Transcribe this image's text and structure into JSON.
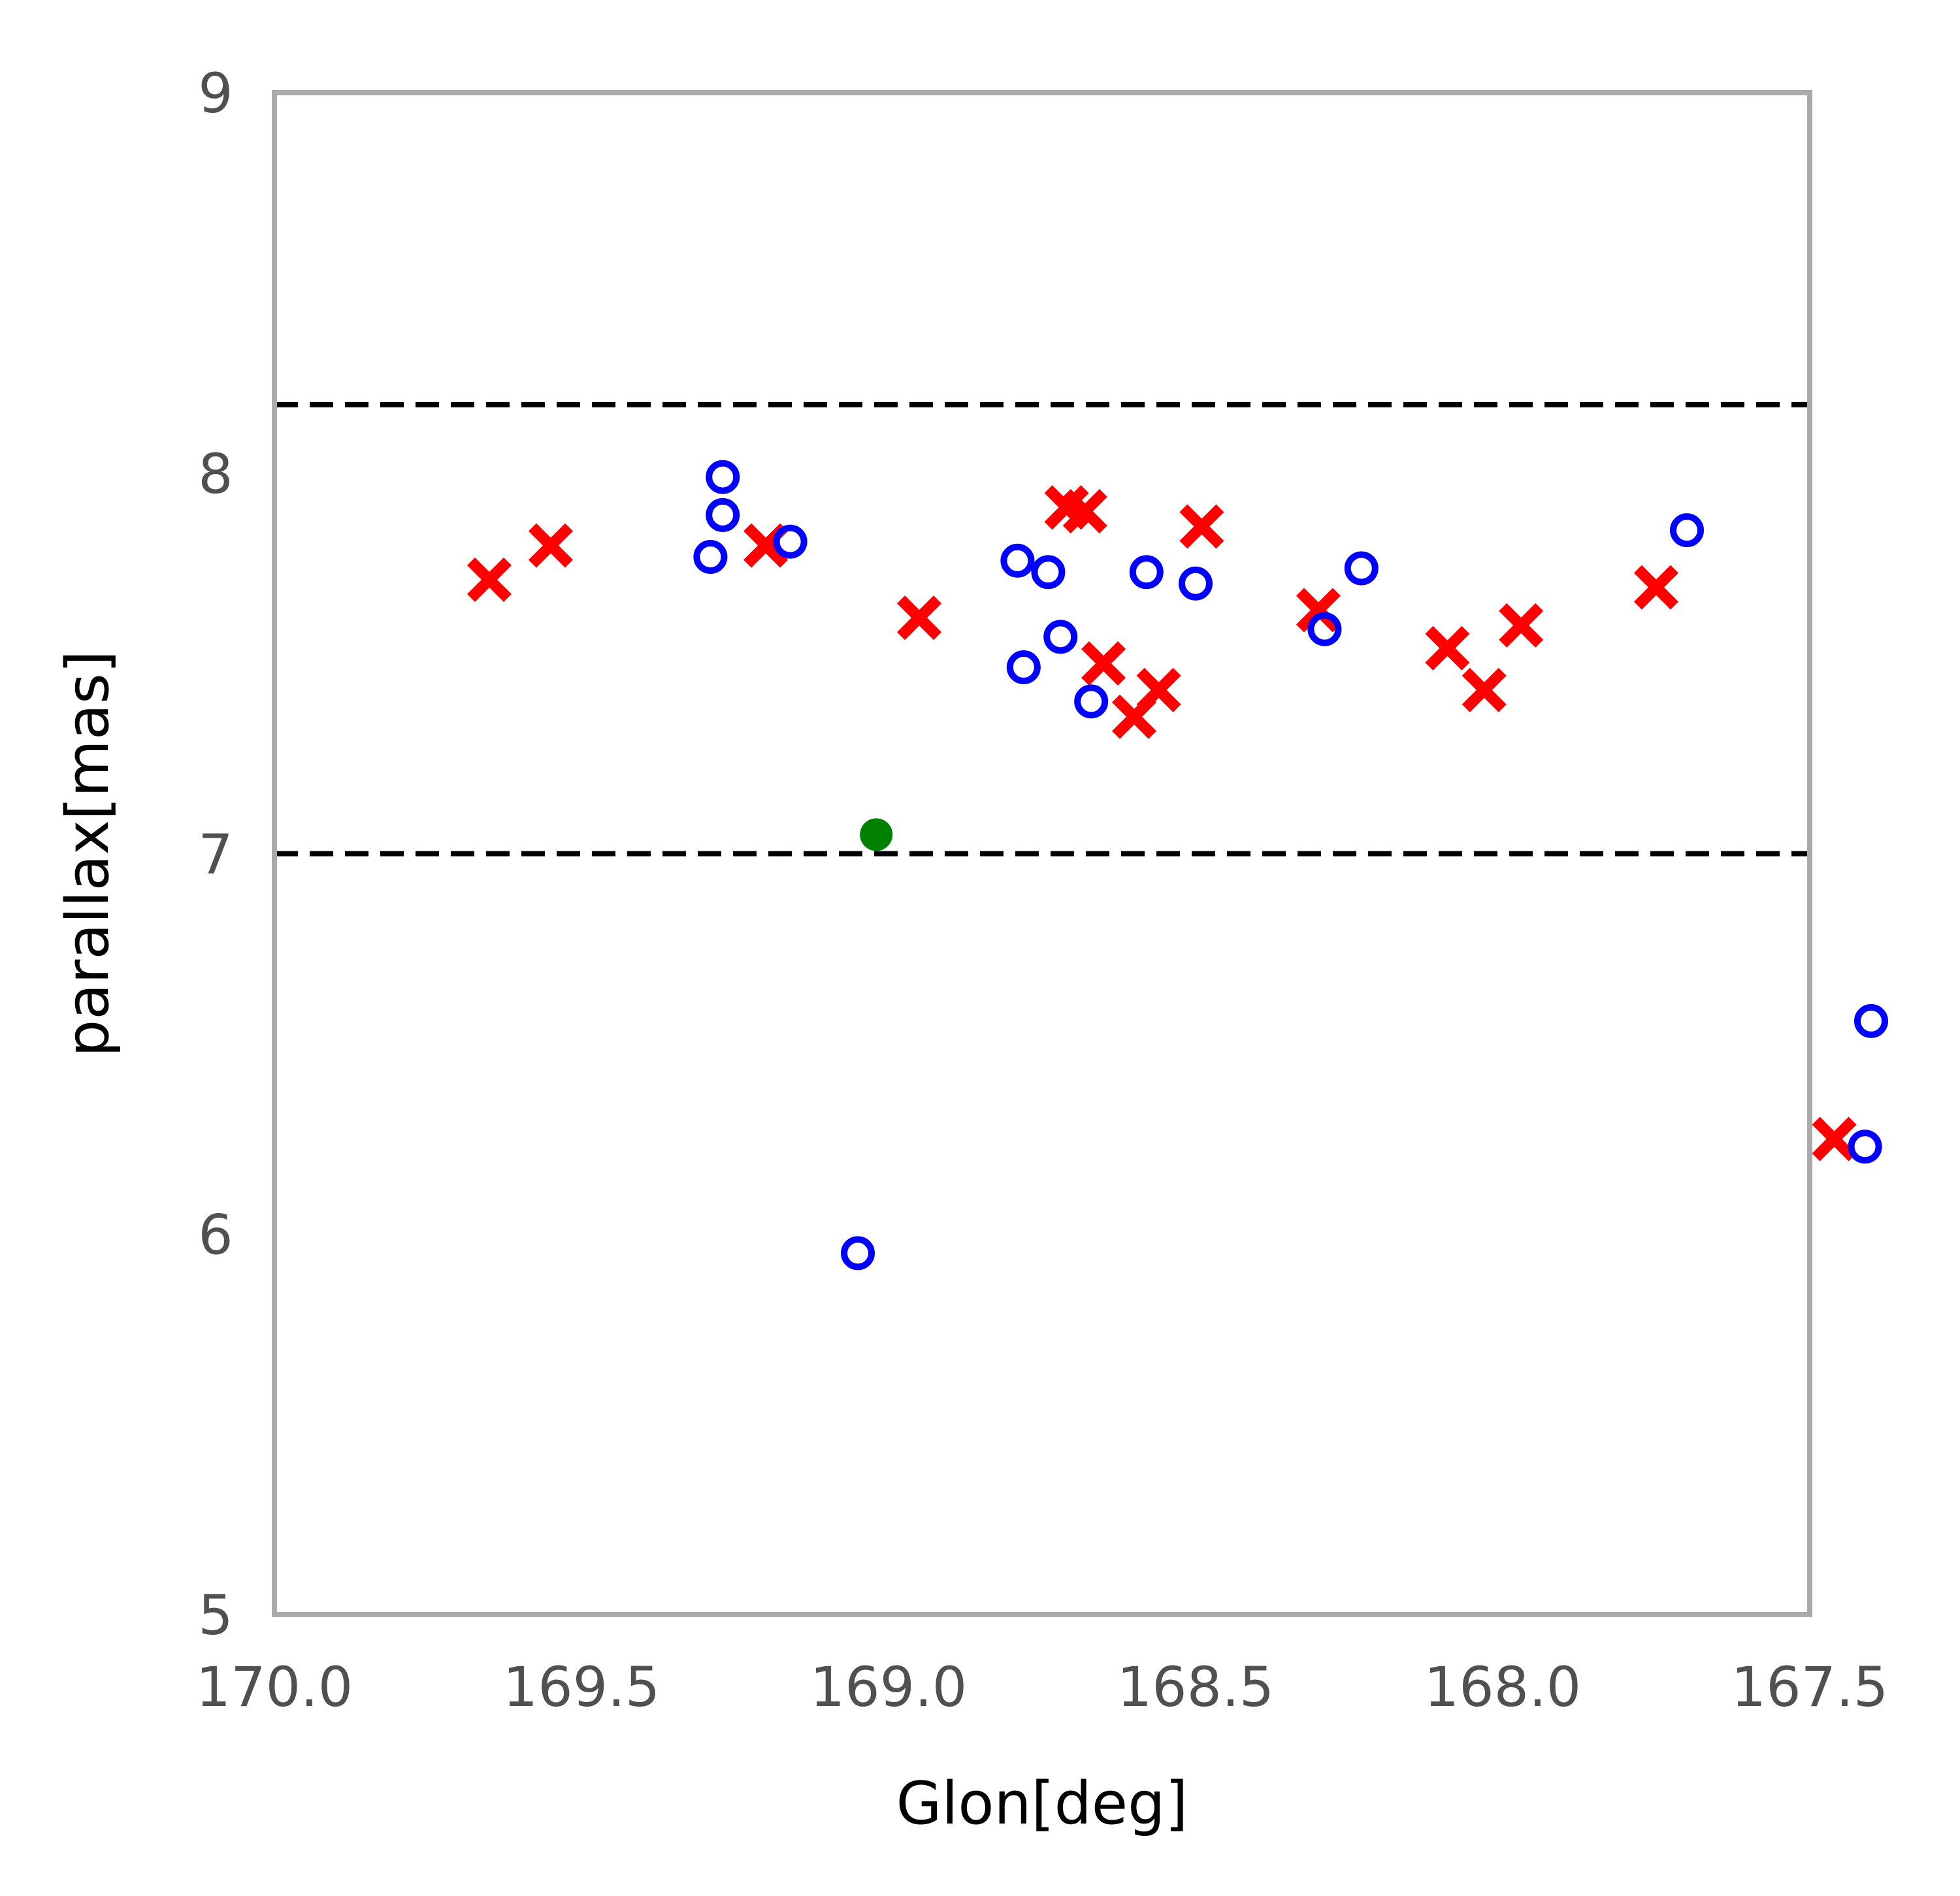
{
  "chart_data": {
    "type": "scatter",
    "title": "",
    "xlabel": "Glon[deg]",
    "ylabel": "parallax[mas]",
    "xlim": [
      170.0,
      167.5
    ],
    "ylim": [
      5,
      9
    ],
    "x_reversed": true,
    "grid": false,
    "x_ticks": [
      170.0,
      169.5,
      169.0,
      168.5,
      168.0,
      167.5
    ],
    "x_tick_labels": [
      "170.0",
      "169.5",
      "169.0",
      "168.5",
      "168.0",
      "167.5"
    ],
    "y_ticks": [
      5,
      6,
      7,
      8,
      9
    ],
    "y_tick_labels": [
      "5",
      "6",
      "7",
      "8",
      "9"
    ],
    "reference_lines": [
      {
        "y": 8.18,
        "style": "dashed",
        "color": "#000000"
      },
      {
        "y": 7.0,
        "style": "dashed",
        "color": "#000000"
      }
    ],
    "series": [
      {
        "marker": "x-filled",
        "color": "#ff0000",
        "points": [
          {
            "x": 169.65,
            "y": 7.72
          },
          {
            "x": 169.55,
            "y": 7.81
          },
          {
            "x": 169.2,
            "y": 7.81
          },
          {
            "x": 168.95,
            "y": 7.62
          },
          {
            "x": 168.71,
            "y": 7.91
          },
          {
            "x": 168.68,
            "y": 7.9
          },
          {
            "x": 168.65,
            "y": 7.5
          },
          {
            "x": 168.6,
            "y": 7.36
          },
          {
            "x": 168.56,
            "y": 7.43
          },
          {
            "x": 168.49,
            "y": 7.86
          },
          {
            "x": 168.3,
            "y": 7.64
          },
          {
            "x": 168.09,
            "y": 7.54
          },
          {
            "x": 168.03,
            "y": 7.43
          },
          {
            "x": 167.97,
            "y": 7.6
          },
          {
            "x": 167.75,
            "y": 7.7
          },
          {
            "x": 167.46,
            "y": 6.25
          }
        ]
      },
      {
        "marker": "open-circle",
        "color": "#0000ff",
        "points": [
          {
            "x": 169.27,
            "y": 7.99
          },
          {
            "x": 169.27,
            "y": 7.89
          },
          {
            "x": 169.29,
            "y": 7.78
          },
          {
            "x": 169.16,
            "y": 7.82
          },
          {
            "x": 169.05,
            "y": 5.95
          },
          {
            "x": 168.79,
            "y": 7.77
          },
          {
            "x": 168.78,
            "y": 7.49
          },
          {
            "x": 168.74,
            "y": 7.74
          },
          {
            "x": 168.72,
            "y": 7.57
          },
          {
            "x": 168.67,
            "y": 7.4
          },
          {
            "x": 168.58,
            "y": 7.74
          },
          {
            "x": 168.5,
            "y": 7.71
          },
          {
            "x": 168.29,
            "y": 7.59
          },
          {
            "x": 168.23,
            "y": 7.75
          },
          {
            "x": 167.7,
            "y": 7.85
          },
          {
            "x": 167.4,
            "y": 6.56
          },
          {
            "x": 167.41,
            "y": 6.23
          }
        ]
      },
      {
        "marker": "filled-circle",
        "color": "#008000",
        "points": [
          {
            "x": 169.02,
            "y": 7.05
          }
        ]
      }
    ],
    "frame_color": "#aaaaaa"
  }
}
